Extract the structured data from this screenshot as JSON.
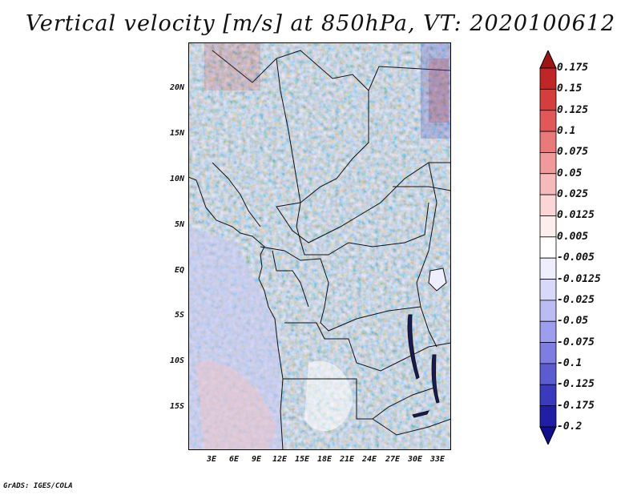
{
  "title": "Vertical velocity [m/s] at 850hPa, VT: 2020100612",
  "footer": "GrADS: IGES/COLA",
  "y_axis": [
    "20N",
    "15N",
    "10N",
    "5N",
    "EQ",
    "5S",
    "10S",
    "15S"
  ],
  "x_axis": [
    "3E",
    "6E",
    "9E",
    "12E",
    "15E",
    "18E",
    "21E",
    "24E",
    "27E",
    "30E",
    "33E"
  ],
  "colorbar": {
    "labels": [
      "0.175",
      "0.15",
      "0.125",
      "0.1",
      "0.075",
      "0.05",
      "0.025",
      "0.0125",
      "0.005",
      "-0.005",
      "-0.0125",
      "-0.025",
      "-0.05",
      "-0.075",
      "-0.1",
      "-0.125",
      "-0.175",
      "-0.2"
    ],
    "colors": [
      "#a01414",
      "#c02626",
      "#d63e3e",
      "#e25858",
      "#ea7a7a",
      "#f19a9a",
      "#f6baba",
      "#fad6d6",
      "#fdeeee",
      "#ffffff",
      "#eeeeff",
      "#d8d8fa",
      "#bcbcf4",
      "#9e9eee",
      "#7e7ee2",
      "#5c5cd2",
      "#3a3abf",
      "#1f1fa6",
      "#10108c"
    ]
  }
}
